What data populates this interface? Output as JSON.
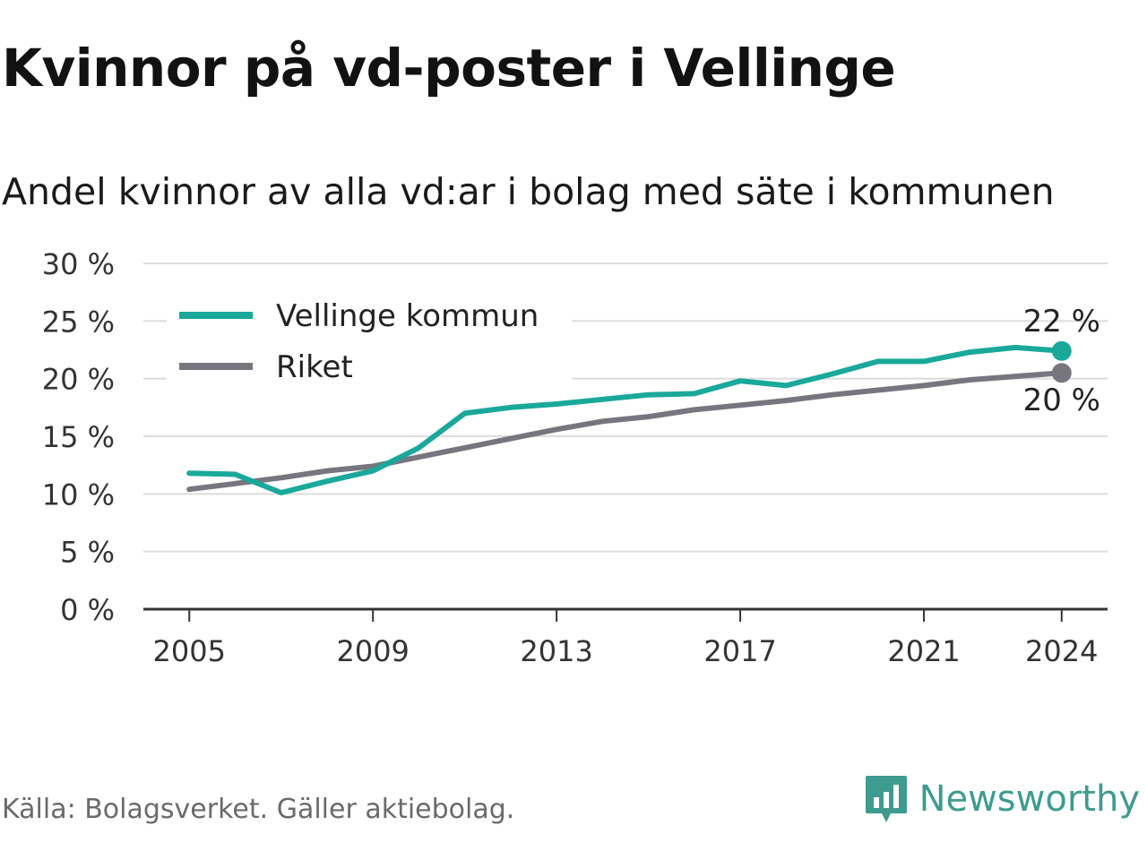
{
  "title": "Kvinnor på vd-poster i Vellinge",
  "subtitle": "Andel kvinnor av alla vd:ar i bolag med säte i kommunen",
  "footer": {
    "source": "Källa: Bolagsverket. Gäller aktiebolag."
  },
  "brand": {
    "name": "Newsworthy",
    "icon": "newsworthy-logo-icon",
    "color": "#3e9b8f"
  },
  "chart_data": {
    "type": "line",
    "x": [
      2005,
      2006,
      2007,
      2008,
      2009,
      2010,
      2011,
      2012,
      2013,
      2014,
      2015,
      2016,
      2017,
      2018,
      2019,
      2020,
      2021,
      2022,
      2023,
      2024
    ],
    "xticks": [
      2005,
      2009,
      2013,
      2017,
      2021,
      2024
    ],
    "xtick_labels": [
      "2005",
      "2009",
      "2013",
      "2017",
      "2021",
      "2024"
    ],
    "yticks": [
      0,
      5,
      10,
      15,
      20,
      25,
      30
    ],
    "ytick_labels": [
      "0 %",
      "5 %",
      "10 %",
      "15 %",
      "20 %",
      "25 %",
      "30 %"
    ],
    "ylim": [
      0,
      30
    ],
    "xlim": [
      2004,
      2025
    ],
    "grid": true,
    "legend": "top-left",
    "series": [
      {
        "name": "Vellinge kommun",
        "color": "#1aa89b",
        "values": [
          11.8,
          11.7,
          10.1,
          11.1,
          12.0,
          14.0,
          17.0,
          17.5,
          17.8,
          18.2,
          18.6,
          18.7,
          19.8,
          19.4,
          20.4,
          21.5,
          21.5,
          22.3,
          22.7,
          22.4
        ],
        "end_label": "22 %"
      },
      {
        "name": "Riket",
        "color": "#77757e",
        "values": [
          10.4,
          10.9,
          11.4,
          12.0,
          12.4,
          13.2,
          14.0,
          14.8,
          15.6,
          16.3,
          16.7,
          17.3,
          17.7,
          18.1,
          18.6,
          19.0,
          19.4,
          19.9,
          20.2,
          20.5
        ],
        "end_label": "20 %"
      }
    ]
  }
}
